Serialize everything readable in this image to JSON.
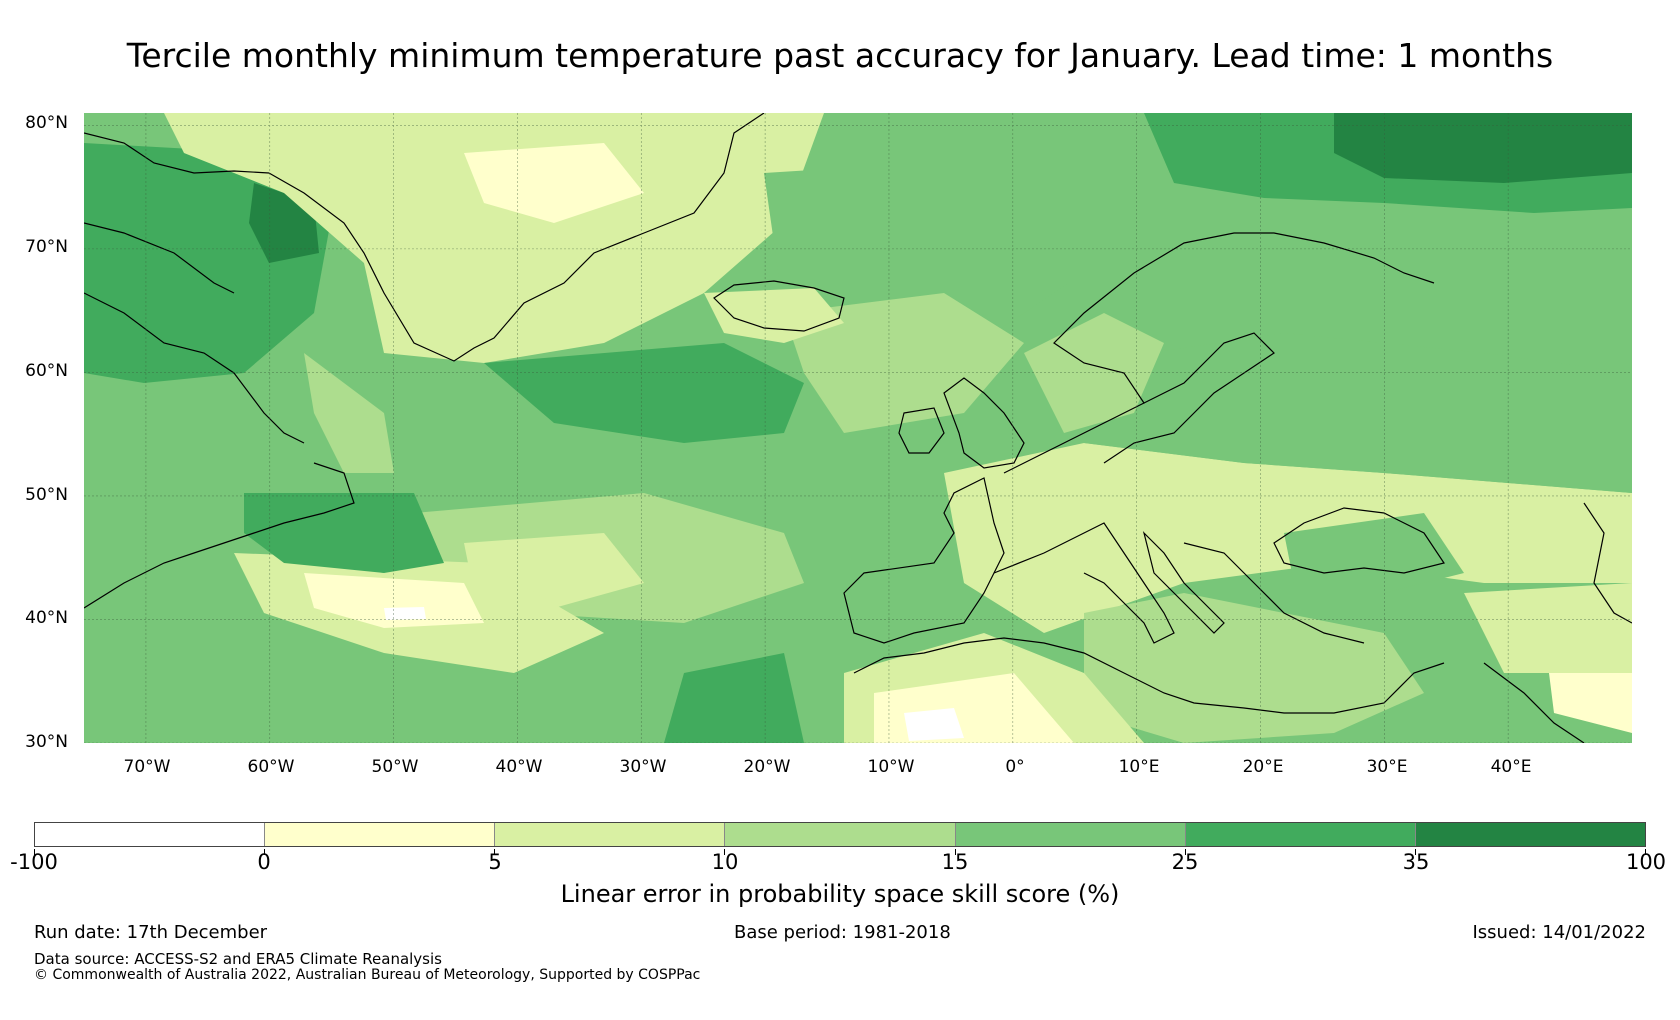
{
  "title": "Tercile monthly minimum temperature past accuracy for January. Lead time: 1 months",
  "map": {
    "region": "North Atlantic and Europe",
    "lon_range": [
      -75,
      50
    ],
    "lat_range": [
      30,
      81
    ],
    "lat_labels": [
      "30°N",
      "40°N",
      "50°N",
      "60°N",
      "70°N",
      "80°N"
    ],
    "lat_values": [
      30,
      40,
      50,
      60,
      70,
      80
    ],
    "lon_labels": [
      "70°W",
      "60°W",
      "50°W",
      "40°W",
      "30°W",
      "20°W",
      "10°W",
      "0°",
      "10°E",
      "20°E",
      "30°E",
      "40°E"
    ],
    "lon_values": [
      -70,
      -60,
      -50,
      -40,
      -30,
      -20,
      -10,
      0,
      10,
      20,
      30,
      40
    ]
  },
  "colorbar": {
    "title": "Linear error in probability space skill score (%)",
    "tick_labels": [
      "-100",
      "0",
      "5",
      "10",
      "15",
      "25",
      "35",
      "100"
    ],
    "colors": [
      "#ffffff",
      "#ffffcc",
      "#d9f0a3",
      "#addd8e",
      "#78c679",
      "#41ab5d",
      "#238443"
    ]
  },
  "footer": {
    "run_date": "Run date: 17th December",
    "base_period": "Base period: 1981-2018",
    "issued": "Issued: 14/01/2022",
    "data_source": "Data source: ACCESS-S2 and ERA5 Climate Reanalysis",
    "copyright": "© Commonwealth of Australia 2022, Australian Bureau of Meteorology, Supported by COSPPac"
  }
}
